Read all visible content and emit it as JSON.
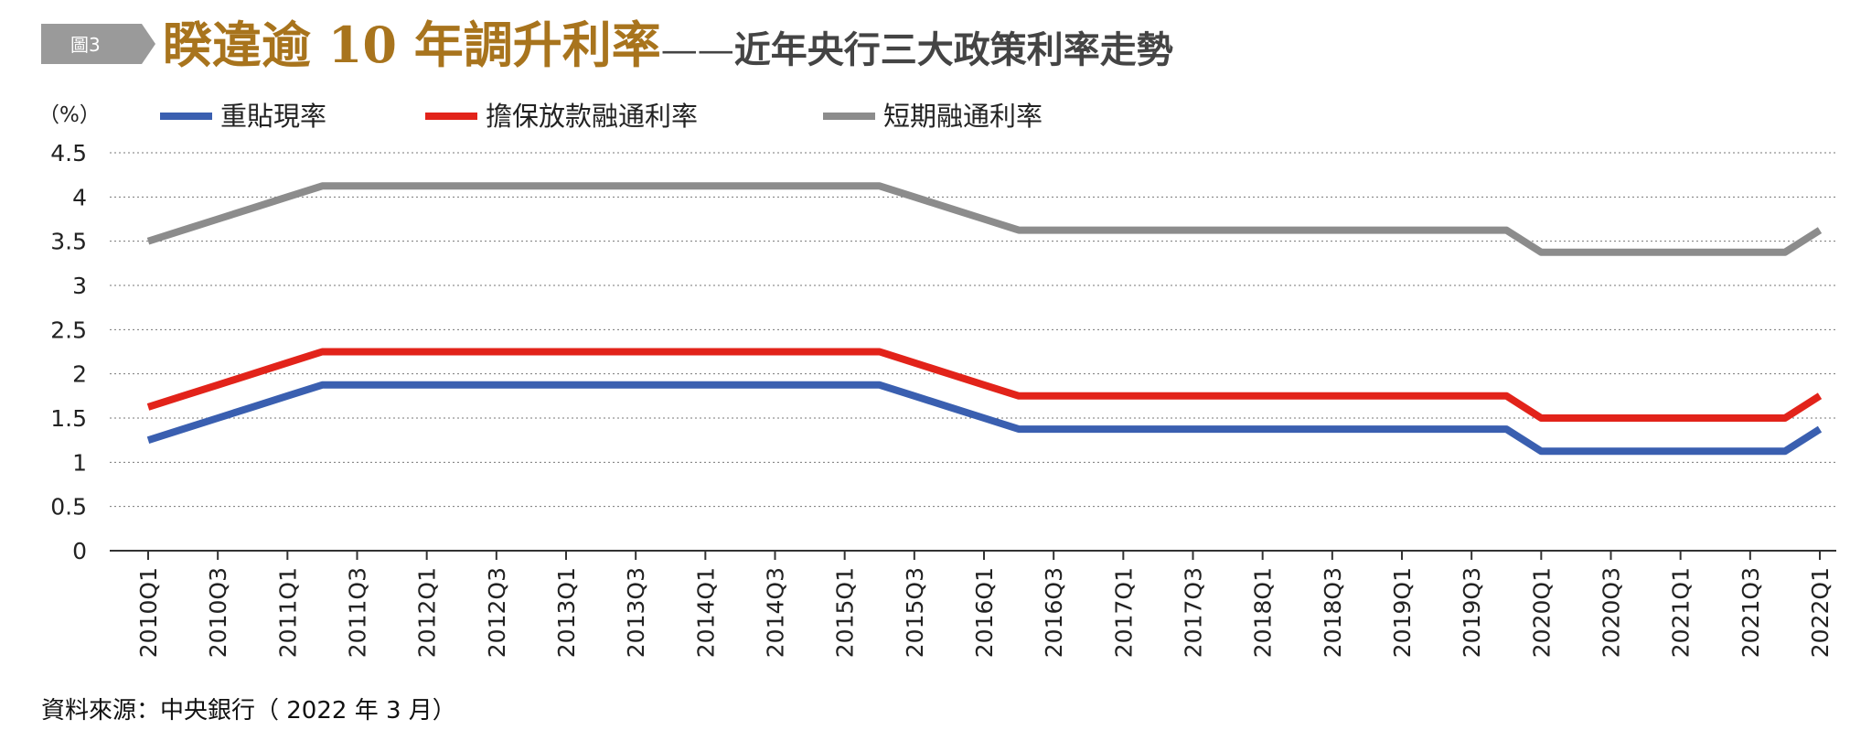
{
  "header": {
    "badge": "圖3",
    "title": "睽違逾 10 年調升利率",
    "dash": "——",
    "subtitle": "近年央行三大政策利率走勢"
  },
  "colors": {
    "title": "#a8741d",
    "badge": "#9a9a9a",
    "grid": "#777777",
    "axis": "#333333"
  },
  "source": "資料來源：中央銀行（ 2022 年 3 月）",
  "chart_data": {
    "type": "line",
    "title": "",
    "unit_label": "（%）",
    "xlabel": "",
    "ylabel": "",
    "ylim": [
      0,
      4.5
    ],
    "yticks": [
      "0",
      "0.5",
      "1",
      "1.5",
      "2",
      "2.5",
      "3",
      "3.5",
      "4",
      "4.5"
    ],
    "grid": true,
    "legend_position": "top",
    "categories": [
      "2010Q1",
      "2010Q2",
      "2010Q3",
      "2010Q4",
      "2011Q1",
      "2011Q2",
      "2011Q3",
      "2011Q4",
      "2012Q1",
      "2012Q2",
      "2012Q3",
      "2012Q4",
      "2013Q1",
      "2013Q2",
      "2013Q3",
      "2013Q4",
      "2014Q1",
      "2014Q2",
      "2014Q3",
      "2014Q4",
      "2015Q1",
      "2015Q2",
      "2015Q3",
      "2015Q4",
      "2016Q1",
      "2016Q2",
      "2016Q3",
      "2016Q4",
      "2017Q1",
      "2017Q2",
      "2017Q3",
      "2017Q4",
      "2018Q1",
      "2018Q2",
      "2018Q3",
      "2018Q4",
      "2019Q1",
      "2019Q2",
      "2019Q3",
      "2019Q4",
      "2020Q1",
      "2020Q2",
      "2020Q3",
      "2020Q4",
      "2021Q1",
      "2021Q2",
      "2021Q3",
      "2021Q4",
      "2022Q1"
    ],
    "tick_labels": [
      "2010Q1",
      "2010Q3",
      "2011Q1",
      "2011Q3",
      "2012Q1",
      "2012Q3",
      "2013Q1",
      "2013Q3",
      "2014Q1",
      "2014Q3",
      "2015Q1",
      "2015Q3",
      "2016Q1",
      "2016Q3",
      "2017Q1",
      "2017Q3",
      "2018Q1",
      "2018Q3",
      "2019Q1",
      "2019Q3",
      "2020Q1",
      "2020Q3",
      "2021Q1",
      "2021Q3",
      "2022Q1"
    ],
    "series": [
      {
        "name": "重貼現率",
        "color": "#3a5fb0",
        "values": [
          1.25,
          1.375,
          1.5,
          1.625,
          1.75,
          1.875,
          1.875,
          1.875,
          1.875,
          1.875,
          1.875,
          1.875,
          1.875,
          1.875,
          1.875,
          1.875,
          1.875,
          1.875,
          1.875,
          1.875,
          1.875,
          1.875,
          1.75,
          1.625,
          1.5,
          1.375,
          1.375,
          1.375,
          1.375,
          1.375,
          1.375,
          1.375,
          1.375,
          1.375,
          1.375,
          1.375,
          1.375,
          1.375,
          1.375,
          1.375,
          1.125,
          1.125,
          1.125,
          1.125,
          1.125,
          1.125,
          1.125,
          1.125,
          1.375
        ]
      },
      {
        "name": "擔保放款融通利率",
        "color": "#e2231a",
        "values": [
          1.625,
          1.75,
          1.875,
          2.0,
          2.125,
          2.25,
          2.25,
          2.25,
          2.25,
          2.25,
          2.25,
          2.25,
          2.25,
          2.25,
          2.25,
          2.25,
          2.25,
          2.25,
          2.25,
          2.25,
          2.25,
          2.25,
          2.125,
          2.0,
          1.875,
          1.75,
          1.75,
          1.75,
          1.75,
          1.75,
          1.75,
          1.75,
          1.75,
          1.75,
          1.75,
          1.75,
          1.75,
          1.75,
          1.75,
          1.75,
          1.5,
          1.5,
          1.5,
          1.5,
          1.5,
          1.5,
          1.5,
          1.5,
          1.75
        ]
      },
      {
        "name": "短期融通利率",
        "color": "#8c8c8c",
        "values": [
          3.5,
          3.625,
          3.75,
          3.875,
          4.0,
          4.125,
          4.125,
          4.125,
          4.125,
          4.125,
          4.125,
          4.125,
          4.125,
          4.125,
          4.125,
          4.125,
          4.125,
          4.125,
          4.125,
          4.125,
          4.125,
          4.125,
          4.0,
          3.875,
          3.75,
          3.625,
          3.625,
          3.625,
          3.625,
          3.625,
          3.625,
          3.625,
          3.625,
          3.625,
          3.625,
          3.625,
          3.625,
          3.625,
          3.625,
          3.625,
          3.375,
          3.375,
          3.375,
          3.375,
          3.375,
          3.375,
          3.375,
          3.375,
          3.625
        ]
      }
    ]
  }
}
